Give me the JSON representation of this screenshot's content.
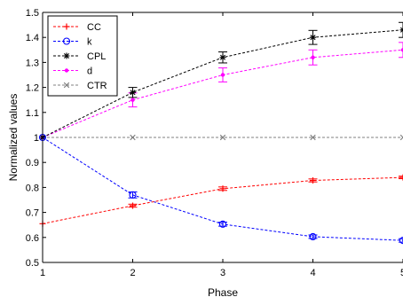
{
  "chart_data": {
    "type": "line",
    "title": "",
    "xlabel": "Phase",
    "ylabel": "Normalized values",
    "x": [
      1,
      2,
      3,
      4,
      5
    ],
    "xlim": [
      1,
      5
    ],
    "ylim": [
      0.5,
      1.5
    ],
    "xticks": [
      "1",
      "2",
      "3",
      "4",
      "5"
    ],
    "yticks": [
      "0.5",
      "0.6",
      "0.7",
      "0.8",
      "0.9",
      "1",
      "1.1",
      "1.2",
      "1.3",
      "1.4",
      "1.5"
    ],
    "grid": false,
    "legend_position": "top-left",
    "series": [
      {
        "name": "CC",
        "color": "#ff0000",
        "marker": "plus",
        "values": [
          0.655,
          0.727,
          0.795,
          0.828,
          0.84
        ],
        "errors": [
          0,
          0.006,
          0.007,
          0.006,
          0.005
        ]
      },
      {
        "name": "k",
        "color": "#0000ff",
        "marker": "circle",
        "values": [
          1.0,
          0.77,
          0.653,
          0.603,
          0.588
        ],
        "errors": [
          0,
          0.012,
          0.008,
          0.007,
          0.007
        ]
      },
      {
        "name": "CPL",
        "color": "#000000",
        "marker": "star",
        "values": [
          1.0,
          1.18,
          1.32,
          1.4,
          1.43
        ],
        "errors": [
          0,
          0.02,
          0.022,
          0.028,
          0.03
        ]
      },
      {
        "name": "d",
        "color": "#ff00ff",
        "marker": "dot",
        "values": [
          1.0,
          1.15,
          1.25,
          1.32,
          1.35
        ],
        "errors": [
          0,
          0.028,
          0.028,
          0.03,
          0.03
        ]
      },
      {
        "name": "CTR",
        "color": "#808080",
        "marker": "x",
        "values": [
          1.0,
          1.0,
          1.0,
          1.0,
          1.0
        ],
        "errors": [
          0,
          0,
          0,
          0,
          0
        ]
      }
    ]
  }
}
